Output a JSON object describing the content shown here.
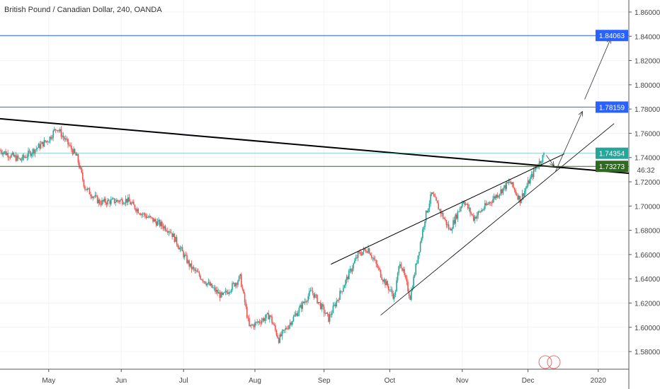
{
  "header": {
    "title": "British Pound / Canadian Dollar, 240, OANDA"
  },
  "countdown": "46:32",
  "colors": {
    "up": "#26a69a",
    "down": "#ef5350",
    "blue": "#2962ff",
    "teal": "#26a69a",
    "olive": "#2e6b1f",
    "trend": "#000000"
  },
  "chart_data": {
    "type": "candlestick",
    "title": "British Pound / Canadian Dollar, 240, OANDA",
    "ylim": [
      1.57,
      1.87
    ],
    "y_ticks": [
      "1.86000",
      "1.84000",
      "1.82000",
      "1.80000",
      "1.78000",
      "1.76000",
      "1.74000",
      "1.72000",
      "1.70000",
      "1.68000",
      "1.66000",
      "1.64000",
      "1.62000",
      "1.60000",
      "1.58000"
    ],
    "y_tick_values": [
      1.86,
      1.84,
      1.82,
      1.8,
      1.78,
      1.76,
      1.74,
      1.72,
      1.7,
      1.68,
      1.66,
      1.64,
      1.62,
      1.6,
      1.58
    ],
    "x_ticks": [
      {
        "label": "May",
        "day": 21.5
      },
      {
        "label": "Jun",
        "day": 53.5
      },
      {
        "label": "Jul",
        "day": 81
      },
      {
        "label": "Aug",
        "day": 112.5
      },
      {
        "label": "Sep",
        "day": 143
      },
      {
        "label": "Oct",
        "day": 172
      },
      {
        "label": "Nov",
        "day": 204
      },
      {
        "label": "Dec",
        "day": 233
      },
      {
        "label": "2020",
        "day": 264
      }
    ],
    "xlim_days": [
      0,
      277.5
    ],
    "price_path": [
      [
        0,
        1.746
      ],
      [
        9,
        1.738
      ],
      [
        21.5,
        1.755
      ],
      [
        25,
        1.765
      ],
      [
        34,
        1.74
      ],
      [
        37.5,
        1.715
      ],
      [
        44,
        1.703
      ],
      [
        56,
        1.705
      ],
      [
        62.5,
        1.694
      ],
      [
        75,
        1.68
      ],
      [
        84,
        1.65
      ],
      [
        90.5,
        1.638
      ],
      [
        98,
        1.625
      ],
      [
        106,
        1.641
      ],
      [
        110,
        1.6
      ],
      [
        119,
        1.61
      ],
      [
        123,
        1.59
      ],
      [
        137.5,
        1.63
      ],
      [
        145,
        1.607
      ],
      [
        153,
        1.64
      ],
      [
        158,
        1.66
      ],
      [
        162.5,
        1.665
      ],
      [
        169,
        1.64
      ],
      [
        174,
        1.625
      ],
      [
        176.5,
        1.655
      ],
      [
        181,
        1.625
      ],
      [
        187.5,
        1.69
      ],
      [
        190.5,
        1.71
      ],
      [
        198.5,
        1.68
      ],
      [
        204.5,
        1.705
      ],
      [
        209,
        1.69
      ],
      [
        225,
        1.72
      ],
      [
        229.5,
        1.705
      ],
      [
        236,
        1.73
      ],
      [
        240,
        1.742
      ]
    ],
    "horizontal_levels": [
      {
        "price": 1.84063,
        "label": "1.84063",
        "color": "#2962ff"
      },
      {
        "price": 1.78159,
        "label": "1.78159",
        "color": "#2962ff"
      },
      {
        "price": 1.74354,
        "label": "1.74354",
        "color": "#26a69a"
      },
      {
        "price": 1.73273,
        "label": "1.73273",
        "color": "#2e6b1f"
      }
    ],
    "trendlines": [
      {
        "name": "descending-resistance",
        "from": [
          0,
          1.772
        ],
        "to": [
          277.5,
          1.727
        ],
        "color": "#000000",
        "width": 2
      },
      {
        "name": "wedge-upper",
        "from": [
          146,
          1.652
        ],
        "to": [
          249,
          1.743
        ],
        "color": "#000000",
        "width": 1
      },
      {
        "name": "wedge-lower",
        "from": [
          168,
          1.61
        ],
        "to": [
          271,
          1.768
        ],
        "color": "#000000",
        "width": 0.8
      }
    ],
    "arrows": [
      {
        "from": [
          245,
          1.728
        ],
        "to": [
          257,
          1.778
        ]
      },
      {
        "from": [
          258,
          1.788
        ],
        "to": [
          269.5,
          1.838
        ]
      },
      {
        "from": [
          241,
          1.742
        ],
        "to": [
          244.5,
          1.733
        ]
      }
    ]
  }
}
